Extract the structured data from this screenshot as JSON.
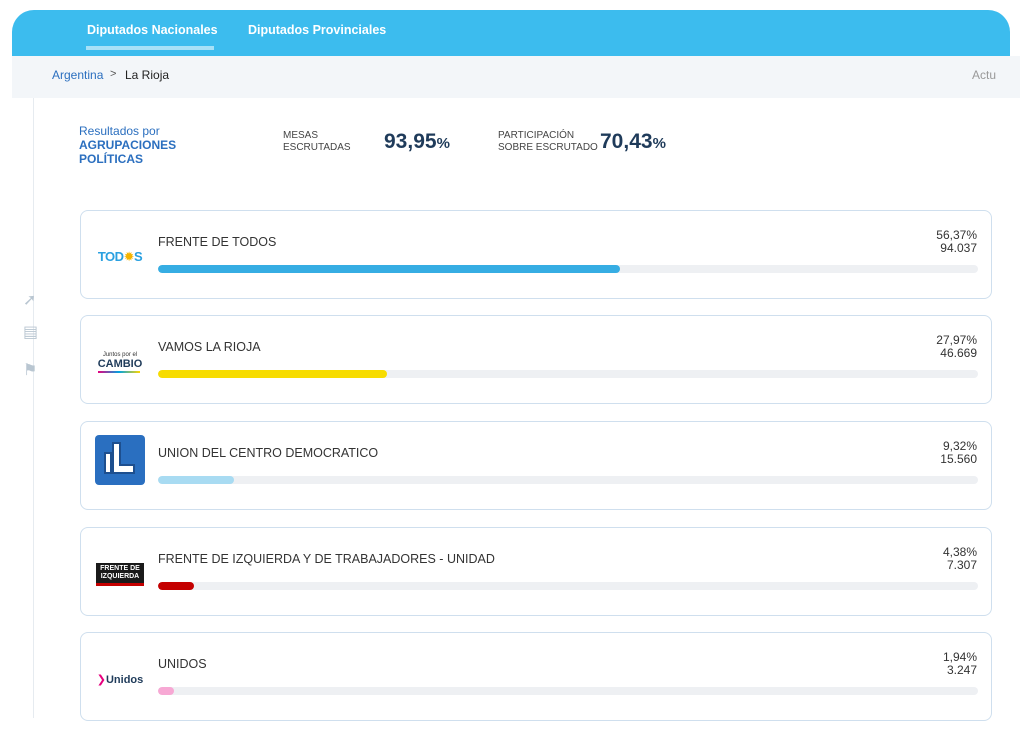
{
  "tabs": [
    {
      "label": "Diputados Nacionales",
      "active": true
    },
    {
      "label": "Diputados Provinciales",
      "active": false
    }
  ],
  "breadcrumb": {
    "root": "Argentina",
    "separator": ">",
    "current": "La Rioja"
  },
  "update_label": "Actu",
  "summary": {
    "title_line1": "Resultados por",
    "title_line2": "AGRUPACIONES POLÍTICAS",
    "mesas_label_1": "MESAS",
    "mesas_label_2": "ESCRUTADAS",
    "mesas_value": "93,95",
    "participacion_label_1": "PARTICIPACIÓN",
    "participacion_label_2": "SOBRE ESCRUTADO",
    "participacion_value": "70,43",
    "percent_sign": "%"
  },
  "results": [
    {
      "name": "FRENTE DE TODOS",
      "pct": "56,37%",
      "votes": "94.037",
      "share": 0.5637,
      "color": "#36ade3",
      "logo": "todos-logo",
      "logo_text": "TOD",
      "logo_text2": "S"
    },
    {
      "name": "VAMOS LA RIOJA",
      "pct": "27,97%",
      "votes": "46.669",
      "share": 0.2797,
      "color": "#f7dc00",
      "logo": "juntos-por-el-cambio-logo",
      "logo_text": "Juntos por el",
      "logo_text2": "CAMBIO"
    },
    {
      "name": "UNION DEL CENTRO DEMOCRATICO",
      "pct": "9,32%",
      "votes": "15.560",
      "share": 0.0932,
      "color": "#a8dbf2",
      "logo": "ucd-hand-logo"
    },
    {
      "name": "FRENTE DE IZQUIERDA Y DE TRABAJADORES - UNIDAD",
      "pct": "4,38%",
      "votes": "7.307",
      "share": 0.0438,
      "color": "#c40000",
      "logo": "frente-de-izquierda-logo",
      "logo_text": "FRENTE DE",
      "logo_text2": "IZQUIERDA"
    },
    {
      "name": "UNIDOS",
      "pct": "1,94%",
      "votes": "3.247",
      "share": 0.0194,
      "color": "#f7a8d4",
      "logo": "unidos-logo",
      "logo_text": "Unidos"
    }
  ]
}
